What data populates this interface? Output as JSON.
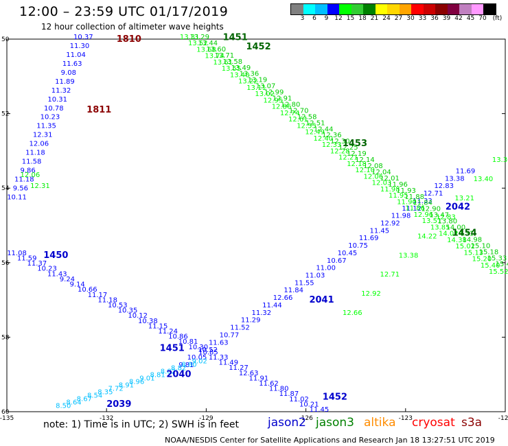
{
  "title": "12:00 – 23:59 UTC 01/17/2019",
  "subtitle": "12 hour collection of altimeter wave heights",
  "legend": {
    "unit": "(ft)",
    "colors": [
      "#808080",
      "#00ffff",
      "#00bfff",
      "#0000ff",
      "#00ff00",
      "#32cd32",
      "#008000",
      "#ffff00",
      "#ffd700",
      "#ffa500",
      "#ff0000",
      "#cc0000",
      "#8b0000",
      "#800040",
      "#c080c0",
      "#ff99ff",
      "#000000"
    ],
    "labels": [
      "3",
      "6",
      "9",
      "12",
      "15",
      "18",
      "21",
      "24",
      "27",
      "30",
      "33",
      "36",
      "39",
      "42",
      "45",
      "70"
    ]
  },
  "axes": {
    "lon_ticks": [
      "-135",
      "-132",
      "-129",
      "-126",
      "-123",
      "-120"
    ],
    "lat_ticks": [
      "50",
      "52",
      "54",
      "56",
      "58",
      "60"
    ]
  },
  "chart_data": {
    "type": "map",
    "extent": {
      "lon": [
        -135,
        -120
      ],
      "lat": [
        50,
        60
      ]
    },
    "tracks": [
      {
        "id": "J2-A",
        "sat": "jason2",
        "color": "#0000ff",
        "start": [
          -132.7,
          50.0
        ],
        "end": [
          -134.7,
          54.3
        ],
        "values": [
          "10.37",
          "11.30",
          "11.04",
          "11.63",
          "9.08",
          "11.89",
          "11.32",
          "10.31",
          "10.78",
          "10.23",
          "11.35",
          "12.31",
          "12.06",
          "11.18",
          "11.58",
          "9.86",
          "11.18",
          "9.56",
          "10.11"
        ]
      },
      {
        "id": "J2-B",
        "sat": "jason2",
        "color": "#0000ff",
        "start": [
          -134.7,
          55.8
        ],
        "end": [
          -125.6,
          60.0
        ],
        "values": [
          "11.08",
          "11.59",
          "11.37",
          "10.23",
          "11.43",
          "9.24",
          "9.14",
          "10.66",
          "11.17",
          "11.18",
          "10.53",
          "10.35",
          "10.12",
          "10.38",
          "11.15",
          "11.24",
          "10.86",
          "10.81",
          "10.30",
          "10.85",
          "11.33",
          "11.49",
          "11.27",
          "12.63",
          "11.91",
          "11.62",
          "11.80",
          "11.87",
          "11.02",
          "10.21",
          "11.45"
        ]
      },
      {
        "id": "J2-C",
        "sat": "jason2",
        "color": "#0000ff",
        "start": [
          -129.6,
          58.8
        ],
        "end": [
          -121.2,
          53.6
        ],
        "values": [
          "9.81",
          "10.05",
          "10.52",
          "11.63",
          "10.77",
          "11.52",
          "11.29",
          "11.32",
          "11.44",
          "12.66",
          "11.84",
          "11.55",
          "11.03",
          "11.00",
          "10.67",
          "10.45",
          "10.75",
          "11.69",
          "11.45",
          "12.92",
          "11.98",
          "11.12",
          "11.33",
          "12.71",
          "12.83",
          "13.38",
          "11.69"
        ]
      },
      {
        "id": "J3-A",
        "sat": "jason3",
        "color": "#00ff00",
        "start": [
          -129.5,
          50.0
        ],
        "end": [
          -120.2,
          56.3
        ],
        "values": [
          "13.31",
          "13.52",
          "13.68",
          "13.74",
          "13.61",
          "13.55",
          "13.40",
          "13.22",
          "13.11",
          "13.02",
          "12.95",
          "12.86",
          "12.74",
          "12.61",
          "12.55",
          "12.49",
          "12.40",
          "12.33",
          "12.28",
          "12.21",
          "12.18",
          "12.10",
          "12.06",
          "12.03",
          "11.98",
          "11.95",
          "11.90",
          "11.86",
          "12.96",
          "13.51",
          "13.85",
          "14.02",
          "14.38",
          "15.02",
          "15.13",
          "15.20",
          "15.40",
          "15.52"
        ]
      },
      {
        "id": "J3-B",
        "sat": "jason3",
        "color": "#00cc00",
        "start": [
          -129.2,
          50.0
        ],
        "end": [
          -120.0,
          56.1
        ],
        "values": [
          "13.29",
          "13.44",
          "13.60",
          "13.71",
          "13.58",
          "13.49",
          "13.36",
          "13.19",
          "13.07",
          "12.99",
          "12.91",
          "12.80",
          "12.70",
          "12.58",
          "12.51",
          "12.44",
          "12.36",
          "12.30",
          "12.25",
          "12.19",
          "12.14",
          "12.08",
          "12.04",
          "12.01",
          "11.96",
          "11.93",
          "11.88",
          "11.84",
          "12.90",
          "13.47",
          "13.80",
          "14.00",
          "14.31",
          "14.98",
          "15.10",
          "15.18",
          "15.33",
          "15.47"
        ]
      },
      {
        "id": "J3-C",
        "sat": "jason3",
        "color": "#00ff00",
        "start": [
          -120.1,
          53.3
        ],
        "end": [
          -124.6,
          57.4
        ],
        "values": [
          "13.30",
          "13.40",
          "13.21",
          "12.83",
          "14.22",
          "13.38",
          "12.71",
          "12.92",
          "12.66"
        ]
      },
      {
        "id": "J3-D",
        "sat": "jason3",
        "color": "#00ee00",
        "start": [
          -134.0,
          54.0
        ],
        "end": [
          -134.3,
          53.7
        ],
        "values": [
          "12.31",
          "12.06"
        ]
      },
      {
        "id": "J2-D",
        "sat": "jason2",
        "color": "#00bfff",
        "start": [
          -133.3,
          59.9
        ],
        "end": [
          -129.2,
          58.7
        ],
        "values": [
          "8.50",
          "8.64",
          "8.67",
          "8.54",
          "8.35",
          "7.72",
          "8.91",
          "8.96",
          "9.01",
          "8.81",
          "8.82",
          "8.82",
          "8.80",
          "9.02"
        ]
      }
    ],
    "labels": [
      {
        "text": "1810",
        "lon": -131.7,
        "lat": 50.0,
        "color": "#8b0000"
      },
      {
        "text": "1811",
        "lon": -132.6,
        "lat": 51.9,
        "color": "#8b0000"
      },
      {
        "text": "1450",
        "lon": -133.9,
        "lat": 55.8,
        "color": "#0000cd"
      },
      {
        "text": "1451",
        "lon": -130.4,
        "lat": 58.3,
        "color": "#0000cd"
      },
      {
        "text": "2040",
        "lon": -130.2,
        "lat": 59.0,
        "color": "#0000cd"
      },
      {
        "text": "2039",
        "lon": -132.0,
        "lat": 59.8,
        "color": "#0000cd"
      },
      {
        "text": "1452",
        "lon": -125.5,
        "lat": 59.6,
        "color": "#0000cd"
      },
      {
        "text": "2041",
        "lon": -125.9,
        "lat": 57.0,
        "color": "#0000cd"
      },
      {
        "text": "2042",
        "lon": -121.8,
        "lat": 54.5,
        "color": "#0000cd"
      },
      {
        "text": "1451",
        "lon": -128.5,
        "lat": 49.95,
        "color": "#006400"
      },
      {
        "text": "1452",
        "lon": -127.8,
        "lat": 50.2,
        "color": "#006400"
      },
      {
        "text": "1453",
        "lon": -124.9,
        "lat": 52.8,
        "color": "#006400"
      },
      {
        "text": "1454",
        "lon": -121.6,
        "lat": 55.2,
        "color": "#006400"
      }
    ]
  },
  "note": "note:  1) Time is in UTC;  2) SWH is in feet",
  "satellites": [
    {
      "name": "jason2",
      "color": "#0000cd"
    },
    {
      "name": "jason3",
      "color": "#008000"
    },
    {
      "name": "altika",
      "color": "#ff8c00"
    },
    {
      "name": "cryosat",
      "color": "#ff0000"
    },
    {
      "name": "s3a",
      "color": "#8b0000"
    }
  ],
  "footer": "NOAA/NESDIS Center for Satellite Applications and Research   Jan 18 13:27:51 UTC 2019"
}
